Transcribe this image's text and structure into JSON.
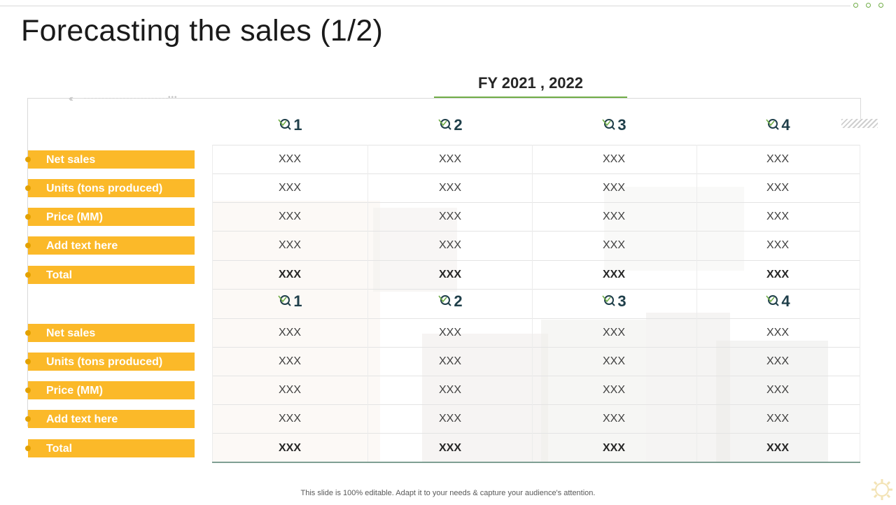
{
  "slide": {
    "title": "Forecasting the sales (1/2)",
    "period_label": "FY 2021 , 2022",
    "footer_text": "This slide is 100% editable. Adapt it to your needs & capture your audience's attention."
  },
  "colors": {
    "accent_green": "#70ad47",
    "label_yellow": "#fbb929",
    "header_navy": "#1f3f4a"
  },
  "quarter_icon": "magnifier-check-icon",
  "tables": [
    {
      "quarters": [
        "1",
        "2",
        "3",
        "4"
      ],
      "rows": [
        {
          "label": "Net sales",
          "values": [
            "XXX",
            "XXX",
            "XXX",
            "XXX"
          ],
          "bold": false
        },
        {
          "label": "Units (tons produced)",
          "values": [
            "XXX",
            "XXX",
            "XXX",
            "XXX"
          ],
          "bold": false
        },
        {
          "label": "Price (MM)",
          "values": [
            "XXX",
            "XXX",
            "XXX",
            "XXX"
          ],
          "bold": false
        },
        {
          "label": "Add text here",
          "values": [
            "XXX",
            "XXX",
            "XXX",
            "XXX"
          ],
          "bold": false
        },
        {
          "label": "Total",
          "values": [
            "XXX",
            "XXX",
            "XXX",
            "XXX"
          ],
          "bold": true
        }
      ]
    },
    {
      "quarters": [
        "1",
        "2",
        "3",
        "4"
      ],
      "rows": [
        {
          "label": "Net sales",
          "values": [
            "XXX",
            "XXX",
            "XXX",
            "XXX"
          ],
          "bold": false
        },
        {
          "label": "Units (tons produced)",
          "values": [
            "XXX",
            "XXX",
            "XXX",
            "XXX"
          ],
          "bold": false
        },
        {
          "label": "Price (MM)",
          "values": [
            "XXX",
            "XXX",
            "XXX",
            "XXX"
          ],
          "bold": false
        },
        {
          "label": "Add text here",
          "values": [
            "XXX",
            "XXX",
            "XXX",
            "XXX"
          ],
          "bold": false
        },
        {
          "label": "Total",
          "values": [
            "XXX",
            "XXX",
            "XXX",
            "XXX"
          ],
          "bold": true
        }
      ]
    }
  ]
}
